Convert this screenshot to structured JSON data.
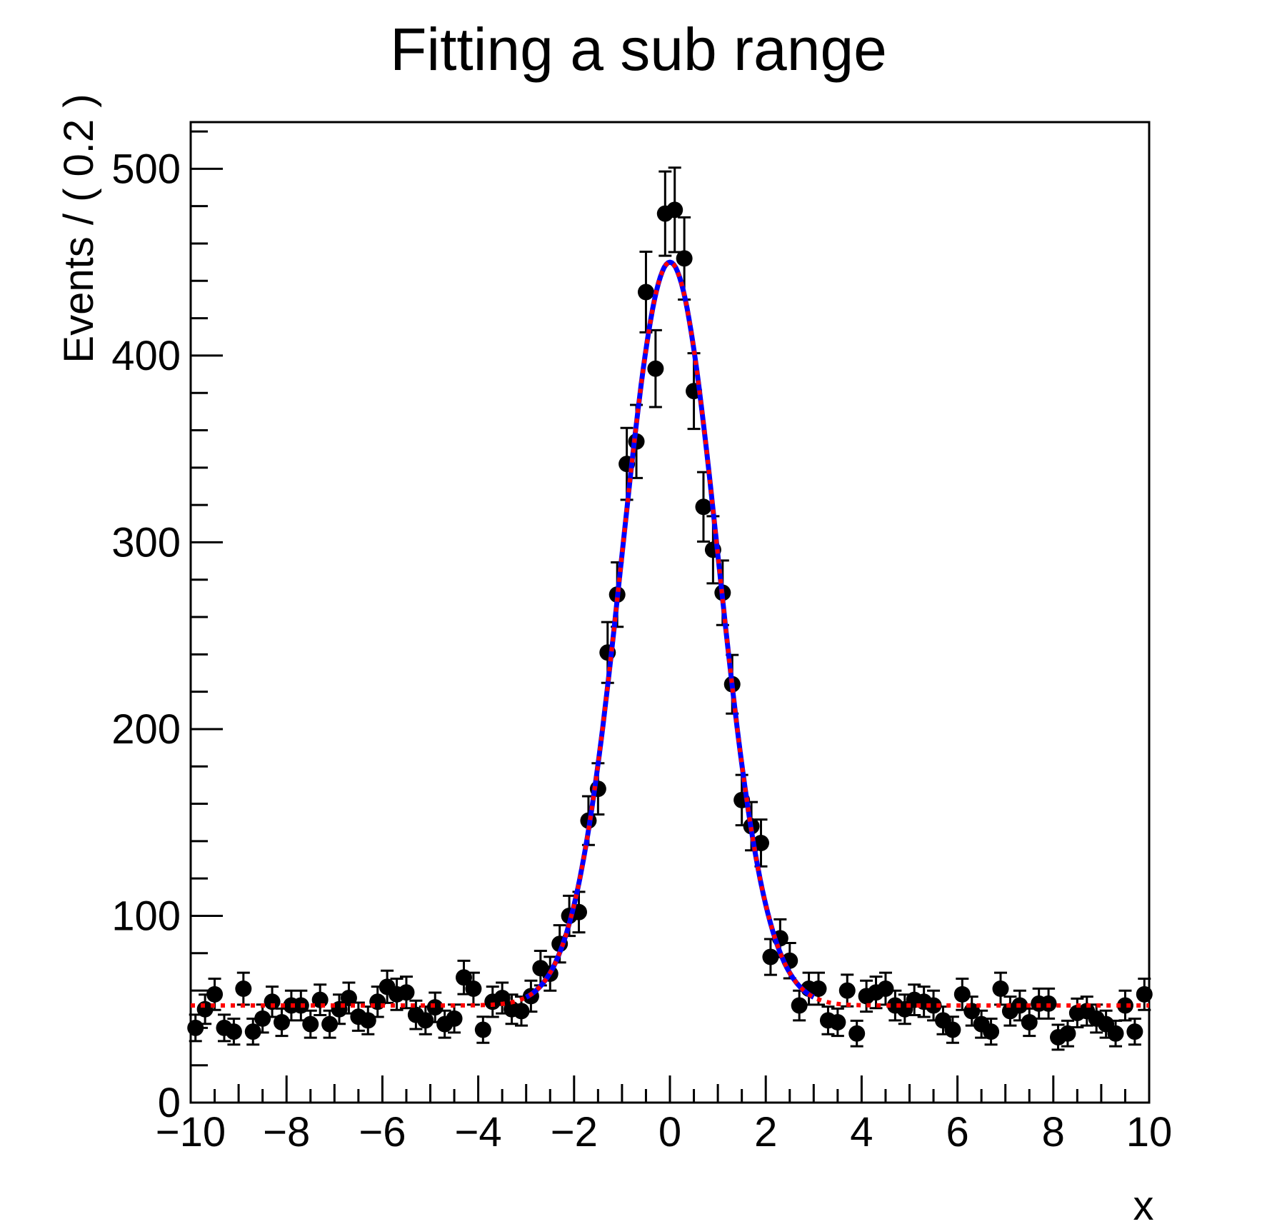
{
  "title": "Fitting a sub range",
  "chart_data": {
    "type": "scatter",
    "title": "Fitting a sub range",
    "xlabel": "x",
    "ylabel": "Events / ( 0.2 )",
    "xlim": [
      -10,
      10
    ],
    "ylim": [
      0,
      525
    ],
    "bin_width": 0.2,
    "grid": false,
    "legend": "none",
    "x_major_ticks": [
      -10,
      -8,
      -6,
      -4,
      -2,
      0,
      2,
      4,
      6,
      8,
      10
    ],
    "x_medium_tick_step": 1,
    "x_minor_tick_step": 0.5,
    "y_major_ticks": [
      0,
      100,
      200,
      300,
      400,
      500
    ],
    "y_minor_tick_step": 20,
    "marker": {
      "shape": "filled-circle",
      "color": "#000000",
      "radius_px": 11.5
    },
    "error_bars": "poisson (~sqrt(N)) with horizontal caps",
    "points": [
      [
        -9.9,
        40
      ],
      [
        -9.7,
        50
      ],
      [
        -9.5,
        58
      ],
      [
        -9.3,
        40
      ],
      [
        -9.1,
        38
      ],
      [
        -8.9,
        61
      ],
      [
        -8.7,
        38
      ],
      [
        -8.5,
        45
      ],
      [
        -8.3,
        54
      ],
      [
        -8.1,
        43
      ],
      [
        -7.9,
        52
      ],
      [
        -7.7,
        52
      ],
      [
        -7.5,
        42
      ],
      [
        -7.3,
        55
      ],
      [
        -7.1,
        42
      ],
      [
        -6.9,
        50
      ],
      [
        -6.7,
        56
      ],
      [
        -6.5,
        46
      ],
      [
        -6.3,
        44
      ],
      [
        -6.1,
        54
      ],
      [
        -5.9,
        62
      ],
      [
        -5.7,
        58
      ],
      [
        -5.5,
        59
      ],
      [
        -5.3,
        47
      ],
      [
        -5.1,
        44
      ],
      [
        -4.9,
        51
      ],
      [
        -4.7,
        42
      ],
      [
        -4.5,
        45
      ],
      [
        -4.3,
        67
      ],
      [
        -4.1,
        61
      ],
      [
        -3.9,
        39
      ],
      [
        -3.7,
        54
      ],
      [
        -3.5,
        56
      ],
      [
        -3.3,
        50
      ],
      [
        -3.1,
        49
      ],
      [
        -2.9,
        57
      ],
      [
        -2.7,
        72
      ],
      [
        -2.5,
        69
      ],
      [
        -2.3,
        85
      ],
      [
        -2.1,
        100
      ],
      [
        -1.9,
        102
      ],
      [
        -1.7,
        151
      ],
      [
        -1.5,
        168
      ],
      [
        -1.3,
        241
      ],
      [
        -1.1,
        272
      ],
      [
        -0.9,
        342
      ],
      [
        -0.7,
        354
      ],
      [
        -0.5,
        434
      ],
      [
        -0.3,
        393
      ],
      [
        -0.1,
        476
      ],
      [
        0.1,
        478
      ],
      [
        0.3,
        452
      ],
      [
        0.5,
        381
      ],
      [
        0.7,
        319
      ],
      [
        0.9,
        296
      ],
      [
        1.1,
        273
      ],
      [
        1.3,
        224
      ],
      [
        1.5,
        162
      ],
      [
        1.7,
        148
      ],
      [
        1.9,
        139
      ],
      [
        2.1,
        78
      ],
      [
        2.3,
        88
      ],
      [
        2.5,
        76
      ],
      [
        2.7,
        52
      ],
      [
        2.9,
        61
      ],
      [
        3.1,
        61
      ],
      [
        3.3,
        44
      ],
      [
        3.5,
        43
      ],
      [
        3.7,
        60
      ],
      [
        3.9,
        37
      ],
      [
        4.1,
        57
      ],
      [
        4.3,
        59
      ],
      [
        4.5,
        61
      ],
      [
        4.7,
        52
      ],
      [
        4.9,
        50
      ],
      [
        5.1,
        55
      ],
      [
        5.3,
        54
      ],
      [
        5.5,
        52
      ],
      [
        5.7,
        44
      ],
      [
        5.9,
        39
      ],
      [
        6.1,
        58
      ],
      [
        6.3,
        49
      ],
      [
        6.5,
        42
      ],
      [
        6.7,
        38
      ],
      [
        6.9,
        61
      ],
      [
        7.1,
        49
      ],
      [
        7.3,
        52
      ],
      [
        7.5,
        43
      ],
      [
        7.7,
        53
      ],
      [
        7.9,
        53
      ],
      [
        8.1,
        35
      ],
      [
        8.3,
        37
      ],
      [
        8.5,
        48
      ],
      [
        8.7,
        49
      ],
      [
        8.9,
        45
      ],
      [
        9.1,
        42
      ],
      [
        9.3,
        37
      ],
      [
        9.5,
        52
      ],
      [
        9.7,
        38
      ],
      [
        9.9,
        58
      ]
    ],
    "curves": [
      {
        "name": "full-range-fit",
        "style": "dotted",
        "color": "#ff0000",
        "line_width": 6,
        "range": [
          -10,
          10
        ],
        "model": "gaussian + constant background",
        "background": 52,
        "amplitude": 398,
        "mean": 0,
        "sigma": 1.0
      },
      {
        "name": "sub-range-fit",
        "style": "solid",
        "color": "#0000ff",
        "line_width": 7,
        "range": [
          -3,
          3
        ],
        "model": "gaussian + constant background",
        "background": 52,
        "amplitude": 398,
        "mean": 0,
        "sigma": 1.0
      }
    ],
    "peak_value": 450,
    "background_level": 52
  }
}
